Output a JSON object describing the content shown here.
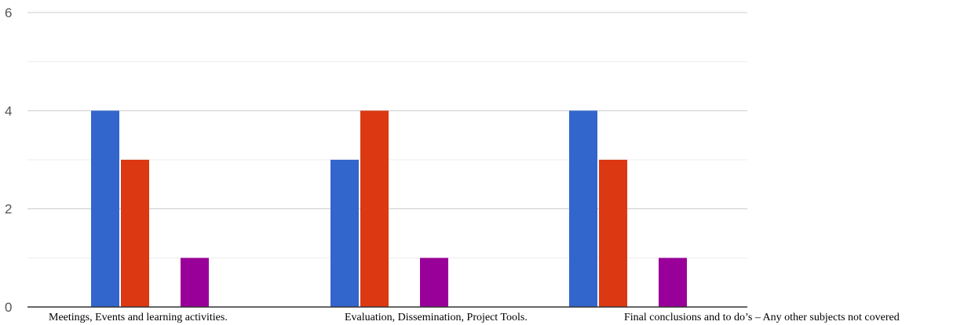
{
  "chart_data": {
    "type": "bar",
    "title": "",
    "xlabel": "",
    "ylabel": "",
    "ylim": [
      0,
      6
    ],
    "yticks": [
      "0",
      "2",
      "4",
      "6"
    ],
    "grid": true,
    "legend": "none",
    "categories": [
      "Meetings, Events and learning activities.",
      "Evaluation, Dissemination, Project Tools.",
      "Final conclusions and to do’s – Any other subjects not covered"
    ],
    "series": [
      {
        "color": "#3366cc",
        "values": [
          4,
          3,
          4
        ]
      },
      {
        "color": "#dc3912",
        "values": [
          3,
          4,
          3
        ]
      },
      {
        "color": "#ff9900",
        "values": [
          0,
          0,
          0
        ]
      },
      {
        "color": "#990099",
        "values": [
          1,
          1,
          1
        ]
      }
    ]
  }
}
